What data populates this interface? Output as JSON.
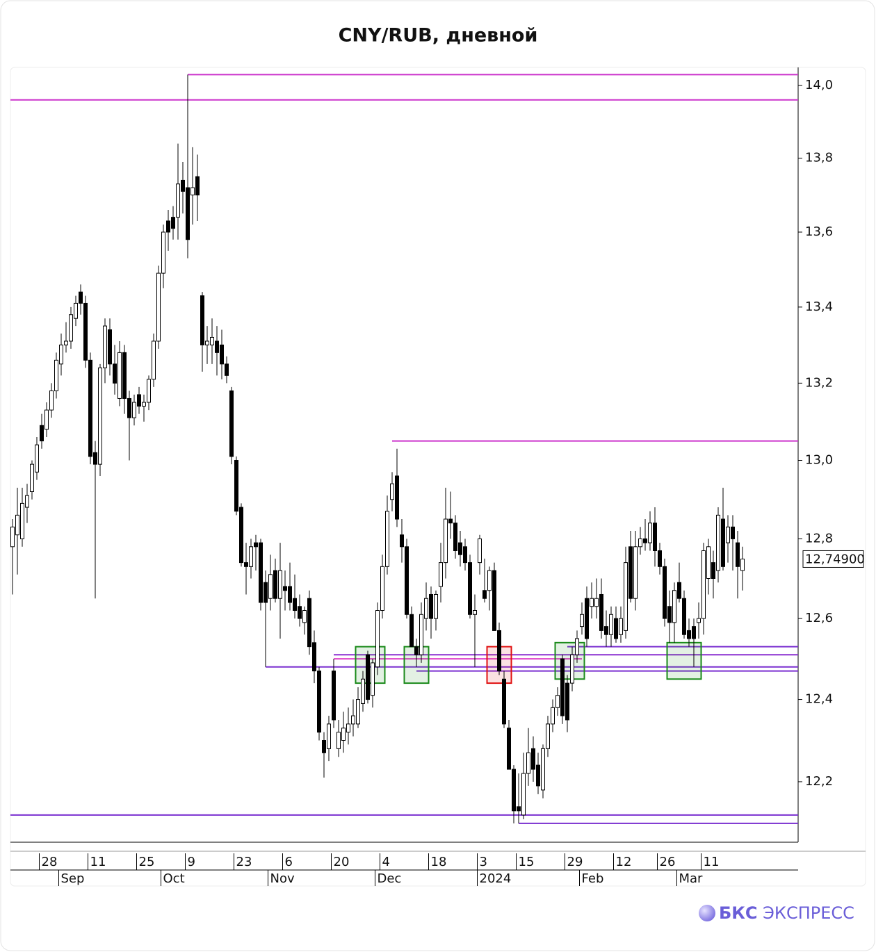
{
  "chart_data": {
    "type": "candlestick",
    "title": "CNY/RUB, дневной",
    "log_scale": true,
    "ylim": [
      12.055,
      14.05
    ],
    "yticks": [
      {
        "value": 12.2,
        "label": "12,2"
      },
      {
        "value": 12.4,
        "label": "12,4"
      },
      {
        "value": 12.6,
        "label": "12,6"
      },
      {
        "value": 12.8,
        "label": "12,8"
      },
      {
        "value": 13.0,
        "label": "13,0"
      },
      {
        "value": 13.2,
        "label": "13,2"
      },
      {
        "value": 13.4,
        "label": "13,4"
      },
      {
        "value": 13.6,
        "label": "13,6"
      },
      {
        "value": 13.8,
        "label": "13,8"
      },
      {
        "value": 14.0,
        "label": "14,0"
      }
    ],
    "up_color": "#ffffff",
    "down_color": "#000000",
    "last_price": {
      "value": 12.749,
      "label": "12,74900"
    },
    "candles": [
      [
        12.78,
        12.85,
        12.66,
        12.83
      ],
      [
        12.81,
        12.93,
        12.71,
        12.86
      ],
      [
        12.8,
        12.93,
        12.78,
        12.89
      ],
      [
        12.88,
        12.94,
        12.84,
        12.91
      ],
      [
        12.92,
        13.0,
        12.9,
        12.99
      ],
      [
        12.97,
        13.06,
        12.95,
        13.04
      ],
      [
        13.09,
        13.12,
        13.03,
        13.05
      ],
      [
        13.08,
        13.15,
        13.06,
        13.13
      ],
      [
        13.13,
        13.2,
        13.11,
        13.18
      ],
      [
        13.18,
        13.28,
        13.16,
        13.26
      ],
      [
        13.25,
        13.33,
        13.22,
        13.3
      ],
      [
        13.3,
        13.36,
        13.28,
        13.31
      ],
      [
        13.31,
        13.4,
        13.29,
        13.38
      ],
      [
        13.37,
        13.43,
        13.35,
        13.41
      ],
      [
        13.44,
        13.46,
        13.38,
        13.41
      ],
      [
        13.41,
        13.43,
        13.24,
        13.26
      ],
      [
        13.26,
        13.28,
        12.99,
        13.01
      ],
      [
        13.02,
        13.05,
        12.65,
        12.99
      ],
      [
        12.99,
        13.25,
        12.96,
        13.24
      ],
      [
        13.24,
        13.37,
        13.2,
        13.35
      ],
      [
        13.34,
        13.37,
        13.22,
        13.25
      ],
      [
        13.25,
        13.3,
        13.17,
        13.2
      ],
      [
        13.16,
        13.31,
        13.14,
        13.28
      ],
      [
        13.28,
        13.3,
        13.12,
        13.16
      ],
      [
        13.16,
        13.18,
        13.0,
        13.11
      ],
      [
        13.11,
        13.17,
        13.09,
        13.15
      ],
      [
        13.17,
        13.19,
        13.12,
        13.14
      ],
      [
        13.14,
        13.17,
        13.1,
        13.15
      ],
      [
        13.15,
        13.22,
        13.13,
        13.21
      ],
      [
        13.21,
        13.33,
        13.19,
        13.31
      ],
      [
        13.31,
        13.51,
        13.29,
        13.49
      ],
      [
        13.49,
        13.62,
        13.45,
        13.6
      ],
      [
        13.63,
        13.66,
        13.55,
        13.6
      ],
      [
        13.64,
        13.67,
        13.58,
        13.61
      ],
      [
        13.64,
        13.84,
        13.58,
        13.73
      ],
      [
        13.74,
        13.79,
        13.65,
        13.71
      ],
      [
        13.72,
        14.03,
        13.53,
        13.58
      ],
      [
        13.7,
        13.83,
        13.62,
        13.72
      ],
      [
        13.75,
        13.81,
        13.63,
        13.7
      ],
      [
        13.43,
        13.44,
        13.23,
        13.3
      ],
      [
        13.3,
        13.35,
        13.25,
        13.31
      ],
      [
        13.3,
        13.37,
        13.25,
        13.32
      ],
      [
        13.31,
        13.35,
        13.22,
        13.28
      ],
      [
        13.3,
        13.34,
        13.21,
        13.25
      ],
      [
        13.25,
        13.27,
        13.2,
        13.22
      ],
      [
        13.18,
        13.19,
        12.99,
        13.01
      ],
      [
        13.0,
        13.01,
        12.86,
        12.87
      ],
      [
        12.88,
        12.89,
        12.73,
        12.74
      ],
      [
        12.74,
        12.79,
        12.66,
        12.73
      ],
      [
        12.73,
        12.8,
        12.7,
        12.78
      ],
      [
        12.79,
        12.81,
        12.72,
        12.78
      ],
      [
        12.79,
        12.8,
        12.62,
        12.64
      ],
      [
        12.69,
        12.72,
        12.48,
        12.64
      ],
      [
        12.65,
        12.76,
        12.62,
        12.71
      ],
      [
        12.72,
        12.75,
        12.64,
        12.65
      ],
      [
        12.65,
        12.79,
        12.55,
        12.72
      ],
      [
        12.68,
        12.72,
        12.62,
        12.67
      ],
      [
        12.68,
        12.74,
        12.62,
        12.64
      ],
      [
        12.65,
        12.71,
        12.6,
        12.62
      ],
      [
        12.63,
        12.66,
        12.58,
        12.6
      ],
      [
        12.59,
        12.63,
        12.56,
        12.62
      ],
      [
        12.65,
        12.67,
        12.51,
        12.53
      ],
      [
        12.54,
        12.57,
        12.44,
        12.47
      ],
      [
        12.47,
        12.48,
        12.3,
        12.32
      ],
      [
        12.3,
        12.32,
        12.21,
        12.27
      ],
      [
        12.28,
        12.36,
        12.25,
        12.34
      ],
      [
        12.47,
        12.5,
        12.33,
        12.35
      ],
      [
        12.28,
        12.35,
        12.26,
        12.32
      ],
      [
        12.3,
        12.37,
        12.27,
        12.33
      ],
      [
        12.32,
        12.38,
        12.29,
        12.34
      ],
      [
        12.34,
        12.4,
        12.31,
        12.36
      ],
      [
        12.34,
        12.43,
        12.33,
        12.4
      ],
      [
        12.39,
        12.47,
        12.37,
        12.45
      ],
      [
        12.51,
        12.52,
        12.39,
        12.4
      ],
      [
        12.41,
        12.5,
        12.38,
        12.49
      ],
      [
        12.48,
        12.64,
        12.46,
        12.62
      ],
      [
        12.62,
        12.76,
        12.6,
        12.73
      ],
      [
        12.73,
        12.91,
        12.71,
        12.87
      ],
      [
        12.9,
        12.97,
        12.87,
        12.94
      ],
      [
        12.96,
        13.03,
        12.83,
        12.85
      ],
      [
        12.81,
        12.85,
        12.74,
        12.78
      ],
      [
        12.78,
        12.8,
        12.6,
        12.61
      ],
      [
        12.61,
        12.63,
        12.53,
        12.53
      ],
      [
        12.53,
        12.55,
        12.48,
        12.51
      ],
      [
        12.51,
        12.64,
        12.49,
        12.61
      ],
      [
        12.6,
        12.69,
        12.57,
        12.65
      ],
      [
        12.66,
        12.68,
        12.55,
        12.6
      ],
      [
        12.6,
        12.67,
        12.57,
        12.66
      ],
      [
        12.68,
        12.79,
        12.64,
        12.74
      ],
      [
        12.74,
        12.93,
        12.7,
        12.85
      ],
      [
        12.85,
        12.92,
        12.8,
        12.84
      ],
      [
        12.84,
        12.86,
        12.75,
        12.77
      ],
      [
        12.79,
        12.82,
        12.73,
        12.76
      ],
      [
        12.78,
        12.8,
        12.72,
        12.74
      ],
      [
        12.74,
        12.76,
        12.6,
        12.61
      ],
      [
        12.61,
        12.66,
        12.48,
        12.62
      ],
      [
        12.74,
        12.81,
        12.71,
        12.8
      ],
      [
        12.67,
        12.75,
        12.64,
        12.65
      ],
      [
        12.67,
        12.73,
        12.62,
        12.72
      ],
      [
        12.72,
        12.74,
        12.57,
        12.57
      ],
      [
        12.57,
        12.59,
        12.46,
        12.47
      ],
      [
        12.45,
        12.47,
        12.33,
        12.34
      ],
      [
        12.33,
        12.35,
        12.23,
        12.23
      ],
      [
        12.23,
        12.24,
        12.1,
        12.13
      ],
      [
        12.14,
        12.22,
        12.1,
        12.13
      ],
      [
        12.12,
        12.27,
        12.11,
        12.22
      ],
      [
        12.22,
        12.33,
        12.19,
        12.27
      ],
      [
        12.28,
        12.31,
        12.2,
        12.23
      ],
      [
        12.24,
        12.27,
        12.17,
        12.19
      ],
      [
        12.18,
        12.29,
        12.16,
        12.28
      ],
      [
        12.28,
        12.36,
        12.26,
        12.34
      ],
      [
        12.34,
        12.4,
        12.32,
        12.38
      ],
      [
        12.38,
        12.43,
        12.36,
        12.41
      ],
      [
        12.5,
        12.51,
        12.34,
        12.36
      ],
      [
        12.44,
        12.46,
        12.32,
        12.35
      ],
      [
        12.44,
        12.53,
        12.42,
        12.51
      ],
      [
        12.51,
        12.57,
        12.49,
        12.55
      ],
      [
        12.58,
        12.64,
        12.56,
        12.61
      ],
      [
        12.65,
        12.68,
        12.53,
        12.55
      ],
      [
        12.63,
        12.69,
        12.6,
        12.65
      ],
      [
        12.63,
        12.7,
        12.6,
        12.65
      ],
      [
        12.66,
        12.7,
        12.55,
        12.57
      ],
      [
        12.58,
        12.62,
        12.53,
        12.56
      ],
      [
        12.56,
        12.63,
        12.53,
        12.61
      ],
      [
        12.6,
        12.63,
        12.54,
        12.55
      ],
      [
        12.56,
        12.63,
        12.54,
        12.6
      ],
      [
        12.57,
        12.78,
        12.55,
        12.74
      ],
      [
        12.78,
        12.82,
        12.64,
        12.65
      ],
      [
        12.65,
        12.82,
        12.62,
        12.78
      ],
      [
        12.78,
        12.83,
        12.76,
        12.8
      ],
      [
        12.8,
        12.85,
        12.77,
        12.79
      ],
      [
        12.79,
        12.87,
        12.77,
        12.84
      ],
      [
        12.84,
        12.88,
        12.73,
        12.77
      ],
      [
        12.77,
        12.79,
        12.71,
        12.73
      ],
      [
        12.73,
        12.75,
        12.58,
        12.6
      ],
      [
        12.63,
        12.67,
        12.54,
        12.59
      ],
      [
        12.59,
        12.69,
        12.54,
        12.67
      ],
      [
        12.69,
        12.74,
        12.64,
        12.65
      ],
      [
        12.65,
        12.67,
        12.55,
        12.56
      ],
      [
        12.57,
        12.6,
        12.53,
        12.55
      ],
      [
        12.58,
        12.6,
        12.48,
        12.55
      ],
      [
        12.59,
        12.64,
        12.55,
        12.6
      ],
      [
        12.6,
        12.79,
        12.56,
        12.77
      ],
      [
        12.7,
        12.8,
        12.66,
        12.78
      ],
      [
        12.74,
        12.77,
        12.65,
        12.7
      ],
      [
        12.72,
        12.88,
        12.69,
        12.86
      ],
      [
        12.85,
        12.93,
        12.72,
        12.73
      ],
      [
        12.79,
        12.86,
        12.74,
        12.83
      ],
      [
        12.83,
        12.86,
        12.72,
        12.8
      ],
      [
        12.79,
        12.82,
        12.65,
        12.73
      ],
      [
        12.72,
        12.78,
        12.67,
        12.749
      ]
    ],
    "categories": [
      null,
      null,
      null,
      null,
      null,
      null,
      "28",
      null,
      null,
      null,
      null,
      null,
      null,
      null,
      null,
      null,
      "11",
      null,
      null,
      null,
      null,
      null,
      null,
      null,
      null,
      null,
      "25",
      null,
      null,
      null,
      null,
      null,
      null,
      null,
      null,
      null,
      "9",
      null,
      null,
      null,
      null,
      null,
      null,
      null,
      null,
      null,
      "23",
      null,
      null,
      null,
      null,
      null,
      null,
      null,
      null,
      null,
      "6",
      null,
      null,
      null,
      null,
      null,
      null,
      null,
      null,
      null,
      "20",
      null,
      null,
      null,
      null,
      null,
      null,
      null,
      null,
      null,
      "4",
      null,
      null,
      null,
      null,
      null,
      null,
      null,
      null,
      null,
      "18",
      null,
      null,
      null,
      null,
      null,
      null,
      null,
      null,
      null,
      "3",
      null,
      null,
      null,
      null,
      null,
      null,
      null,
      "15",
      null,
      null,
      null,
      null,
      null,
      null,
      null,
      null,
      null,
      "29",
      null,
      null,
      null,
      null,
      null,
      null,
      null,
      null,
      null,
      "12",
      null,
      null,
      null,
      null,
      null,
      null,
      null,
      null,
      "26",
      null,
      null,
      null,
      null,
      null,
      null,
      null,
      null,
      "11",
      null,
      null,
      null,
      null,
      null,
      null,
      null,
      null
    ],
    "months": [
      null,
      null,
      null,
      null,
      null,
      null,
      null,
      null,
      null,
      null,
      "Sep",
      null,
      null,
      null,
      null,
      null,
      null,
      null,
      null,
      null,
      null,
      null,
      null,
      null,
      null,
      null,
      null,
      null,
      null,
      null,
      null,
      "Oct",
      null,
      null,
      null,
      null,
      null,
      null,
      null,
      null,
      null,
      null,
      null,
      null,
      null,
      null,
      null,
      null,
      null,
      null,
      null,
      null,
      null,
      "Nov",
      null,
      null,
      null,
      null,
      null,
      null,
      null,
      null,
      null,
      null,
      null,
      null,
      null,
      null,
      null,
      null,
      null,
      null,
      null,
      null,
      null,
      "Dec",
      null,
      null,
      null,
      null,
      null,
      null,
      null,
      null,
      null,
      null,
      null,
      null,
      null,
      null,
      null,
      null,
      null,
      null,
      null,
      null,
      "2024",
      null,
      null,
      null,
      null,
      null,
      null,
      null,
      null,
      null,
      null,
      null,
      null,
      null,
      null,
      null,
      null,
      null,
      null,
      null,
      null,
      "Feb",
      null,
      null,
      null,
      null,
      null,
      null,
      null,
      null,
      null,
      null,
      null,
      null,
      null,
      null,
      null,
      null,
      null,
      null,
      null,
      "Mar",
      null,
      null,
      null,
      null,
      null,
      null,
      null,
      null,
      null,
      null,
      null,
      null,
      null
    ],
    "levels": [
      {
        "value": 14.03,
        "from": 36,
        "color": "#cc33cc"
      },
      {
        "value": 13.96,
        "from": 0,
        "color": "#cc33cc"
      },
      {
        "value": 13.05,
        "from": 78,
        "color": "#cc33cc"
      },
      {
        "value": 12.53,
        "from": 114,
        "color": "#7a2fd0"
      },
      {
        "value": 12.51,
        "from": 66,
        "color": "#8a2fd0"
      },
      {
        "value": 12.5,
        "from": 66,
        "to": 117,
        "color": "#e040c8"
      },
      {
        "value": 12.48,
        "from": 52,
        "color": "#7a2fd0"
      },
      {
        "value": 12.47,
        "from": 83,
        "color": "#7a2fd0"
      },
      {
        "value": 12.12,
        "from": 0,
        "color": "#7a2fd0"
      },
      {
        "value": 12.1,
        "from": 104,
        "color": "#7a2fd0"
      }
    ],
    "boxes": [
      {
        "high": 12.53,
        "low": 12.44,
        "from": 71,
        "to": 76,
        "color": "#1a8a1a"
      },
      {
        "high": 12.53,
        "low": 12.44,
        "from": 81,
        "to": 85,
        "color": "#1a8a1a"
      },
      {
        "high": 12.53,
        "low": 12.44,
        "from": 98,
        "to": 102,
        "color": "#e01010"
      },
      {
        "high": 12.54,
        "low": 12.45,
        "from": 112,
        "to": 117,
        "color": "#1a8a1a"
      },
      {
        "high": 12.54,
        "low": 12.45,
        "from": 135,
        "to": 141,
        "color": "#1a8a1a"
      }
    ]
  },
  "brand": [
    "БКС",
    "ЭКСПРЕСС"
  ]
}
